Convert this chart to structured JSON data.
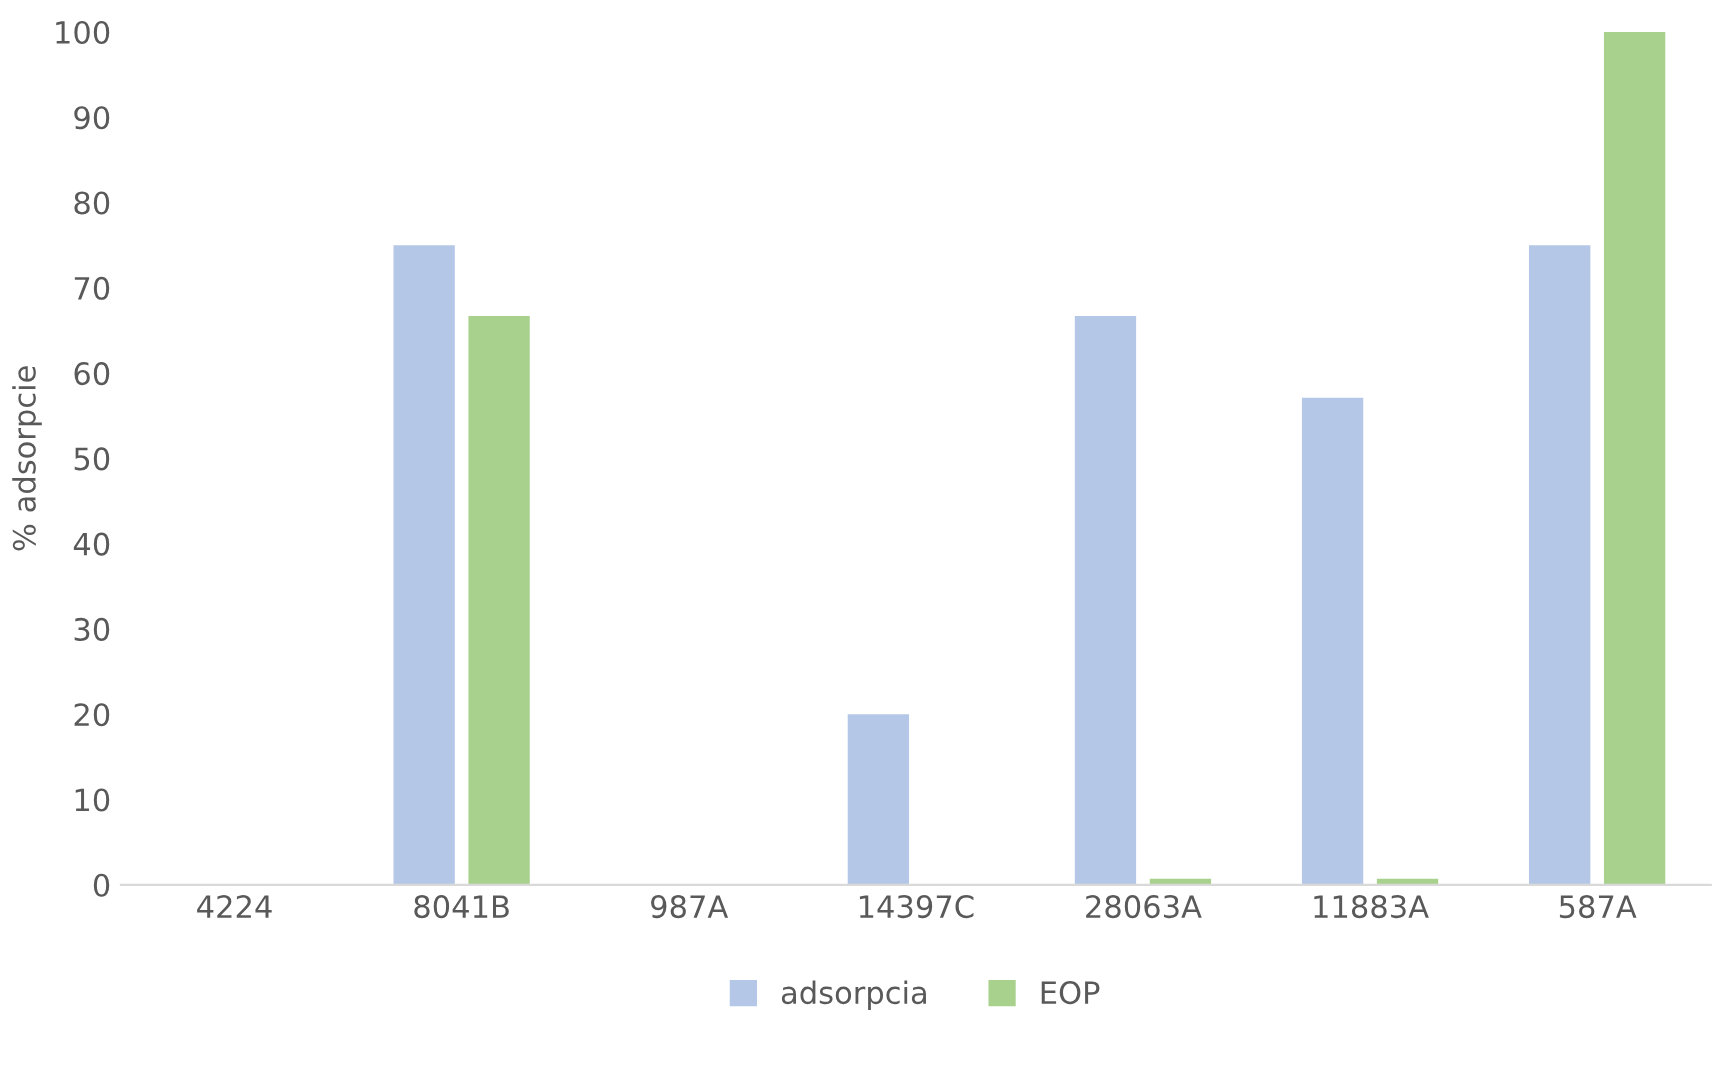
{
  "chart_data": {
    "type": "bar",
    "ylabel": "% adsorpcie",
    "categories": [
      "4224",
      "8041B",
      "987A",
      "14397C",
      "28063A",
      "11883A",
      "587A"
    ],
    "series": [
      {
        "name": "adsorpcia",
        "color": "#b4c7e7",
        "values": [
          0,
          75,
          0,
          20,
          66.7,
          57.1,
          75
        ]
      },
      {
        "name": "EOP",
        "color": "#a9d18e",
        "values": [
          0,
          66.7,
          0,
          0,
          0.7,
          0.7,
          100
        ]
      }
    ],
    "ylim": [
      0,
      100
    ],
    "yticks": [
      0,
      10,
      20,
      30,
      40,
      50,
      60,
      70,
      80,
      90,
      100
    ],
    "grid": false,
    "legend": "bottom"
  }
}
